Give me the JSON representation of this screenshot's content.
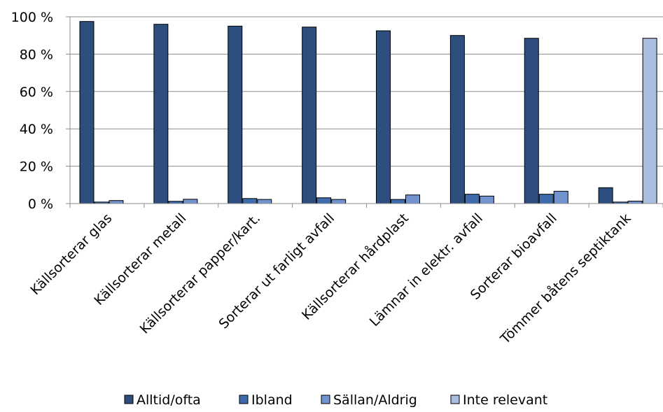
{
  "chart_data": {
    "type": "bar",
    "categories": [
      "Källsorterar glas",
      "Källsorterar metall",
      "Källsorterar papper/kart.",
      "Sorterar ut farligt avfall",
      "Källsorterar hårdplast",
      "Lämnar in elektr. avfall",
      "Sorterar bioavfall",
      "Tömmer båtens septiktank"
    ],
    "series": [
      {
        "name": "Alltid/ofta",
        "color": "#2e4f7e",
        "values": [
          97.5,
          96,
          95,
          94.5,
          92.5,
          90,
          88.5,
          8.5
        ]
      },
      {
        "name": "Ibland",
        "color": "#3d6bab",
        "values": [
          0.8,
          1.2,
          2.7,
          3.1,
          2.2,
          5.0,
          5.0,
          0.8
        ]
      },
      {
        "name": "Sällan/Aldrig",
        "color": "#7194cf",
        "values": [
          1.6,
          2.3,
          2.2,
          2.2,
          4.6,
          4.0,
          6.6,
          1.3
        ]
      },
      {
        "name": "Inte relevant",
        "color": "#a9bde0",
        "values": [
          0,
          0,
          0,
          0,
          0,
          0,
          0,
          88.5
        ]
      }
    ],
    "yticks": [
      "0 %",
      "20 %",
      "40 %",
      "60 %",
      "80 %",
      "100 %"
    ],
    "ylim": [
      0,
      100
    ],
    "grid": true,
    "legend_position": "bottom"
  }
}
